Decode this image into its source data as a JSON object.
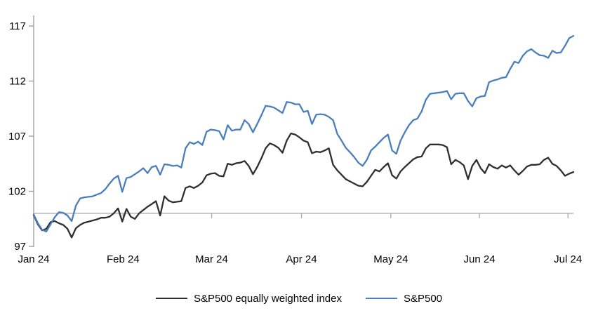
{
  "chart_data": {
    "type": "line",
    "title": "",
    "xlabel": "",
    "ylabel": "",
    "y_ticks": [
      97,
      102,
      107,
      112,
      117
    ],
    "ylim": [
      97,
      118
    ],
    "baseline_value": 100,
    "grid": false,
    "legend_position": "bottom",
    "x_tick_labels": [
      "Jan 24",
      "Feb 24",
      "Mar 24",
      "Apr 24",
      "May 24",
      "Jun 24",
      "Jul 24"
    ],
    "x_tick_positions": [
      0,
      21.2,
      42.2,
      63.5,
      84.7,
      105.7,
      126.7
    ],
    "x_count": 129,
    "axis_color": "#a0a0a0",
    "baseline_color": "#a6a6a6",
    "series": [
      {
        "name": "S&P500 equally weighted index",
        "color": "#2f2f2f",
        "values": [
          99.85,
          99.0,
          98.45,
          98.6,
          99.2,
          99.3,
          99.1,
          98.95,
          98.6,
          97.8,
          98.65,
          98.95,
          99.15,
          99.25,
          99.35,
          99.45,
          99.6,
          99.6,
          99.7,
          100.0,
          100.45,
          99.25,
          100.4,
          99.7,
          99.5,
          100.0,
          100.3,
          100.6,
          100.85,
          101.1,
          99.8,
          101.55,
          101.15,
          101.0,
          101.05,
          101.1,
          102.3,
          102.45,
          102.3,
          102.5,
          102.8,
          103.45,
          103.6,
          103.65,
          103.4,
          103.35,
          104.5,
          104.4,
          104.55,
          104.6,
          104.75,
          104.3,
          103.55,
          104.2,
          105.0,
          105.9,
          106.35,
          106.2,
          105.95,
          105.5,
          106.6,
          107.25,
          107.15,
          106.9,
          106.6,
          106.45,
          105.45,
          105.6,
          105.55,
          105.7,
          105.9,
          104.4,
          103.9,
          103.5,
          103.1,
          102.9,
          102.7,
          102.5,
          102.45,
          102.85,
          103.4,
          103.95,
          103.8,
          104.2,
          104.55,
          103.45,
          103.15,
          103.8,
          104.2,
          104.55,
          104.9,
          105.1,
          105.15,
          105.9,
          106.25,
          106.25,
          106.25,
          106.2,
          106.0,
          104.45,
          104.85,
          104.65,
          104.35,
          103.1,
          104.3,
          104.85,
          104.1,
          103.65,
          104.45,
          104.2,
          104.05,
          104.35,
          104.15,
          104.35,
          103.9,
          103.5,
          103.85,
          104.25,
          104.4,
          104.4,
          104.45,
          104.85,
          105.05,
          104.5,
          104.3,
          103.9,
          103.4,
          103.6,
          103.75
        ]
      },
      {
        "name": "S&P500",
        "color": "#4a7ebc",
        "values": [
          99.9,
          99.1,
          98.5,
          98.35,
          99.0,
          99.65,
          100.1,
          100.05,
          99.8,
          99.3,
          100.7,
          101.35,
          101.45,
          101.5,
          101.55,
          101.7,
          101.85,
          102.2,
          102.7,
          103.15,
          103.4,
          101.95,
          103.2,
          103.3,
          103.55,
          103.8,
          104.1,
          103.65,
          104.2,
          104.3,
          103.5,
          104.45,
          104.4,
          104.3,
          104.35,
          104.15,
          105.9,
          106.45,
          106.3,
          106.5,
          106.2,
          107.4,
          107.6,
          107.55,
          107.45,
          106.7,
          108.0,
          107.5,
          107.6,
          107.6,
          108.45,
          108.1,
          107.35,
          108.1,
          108.9,
          109.75,
          109.7,
          109.6,
          109.35,
          109.1,
          110.1,
          110.05,
          109.9,
          109.9,
          109.2,
          109.3,
          108.1,
          108.95,
          109.0,
          108.95,
          108.75,
          108.45,
          107.2,
          106.6,
          105.95,
          105.55,
          105.1,
          104.6,
          104.3,
          104.85,
          105.7,
          106.05,
          106.45,
          106.85,
          107.15,
          105.7,
          105.4,
          106.6,
          107.35,
          108.0,
          108.45,
          108.6,
          109.25,
          110.3,
          110.85,
          110.9,
          110.95,
          111.0,
          111.1,
          110.35,
          110.85,
          110.9,
          110.9,
          110.2,
          109.7,
          110.45,
          110.6,
          110.65,
          111.9,
          112.05,
          112.15,
          112.3,
          112.35,
          113.1,
          113.75,
          113.65,
          114.3,
          114.7,
          114.9,
          114.6,
          114.35,
          114.3,
          114.1,
          114.75,
          114.55,
          114.6,
          115.2,
          115.9,
          116.1
        ]
      }
    ]
  }
}
